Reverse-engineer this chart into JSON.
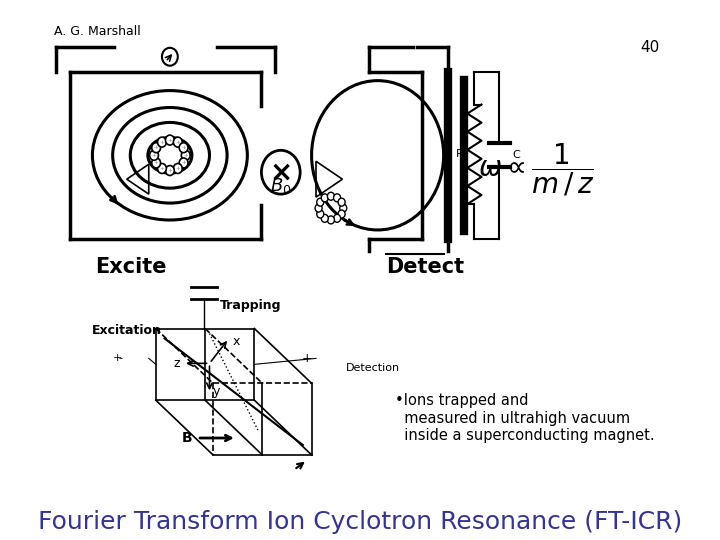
{
  "title": "Fourier Transform Ion Cyclotron Resonance (FT-ICR)",
  "title_color": "#333399",
  "title_fontsize": 18,
  "bullet_text": "•Ions trapped and\n  measured in ultrahigh vacuum\n  inside a superconducting magnet.",
  "bullet_fontsize": 10.5,
  "excite_label": "Excite",
  "detect_label": "Detect",
  "bottom_left": "A. G. Marshall",
  "page_num": "40",
  "bg_color": "#ffffff",
  "text_color": "#000000"
}
